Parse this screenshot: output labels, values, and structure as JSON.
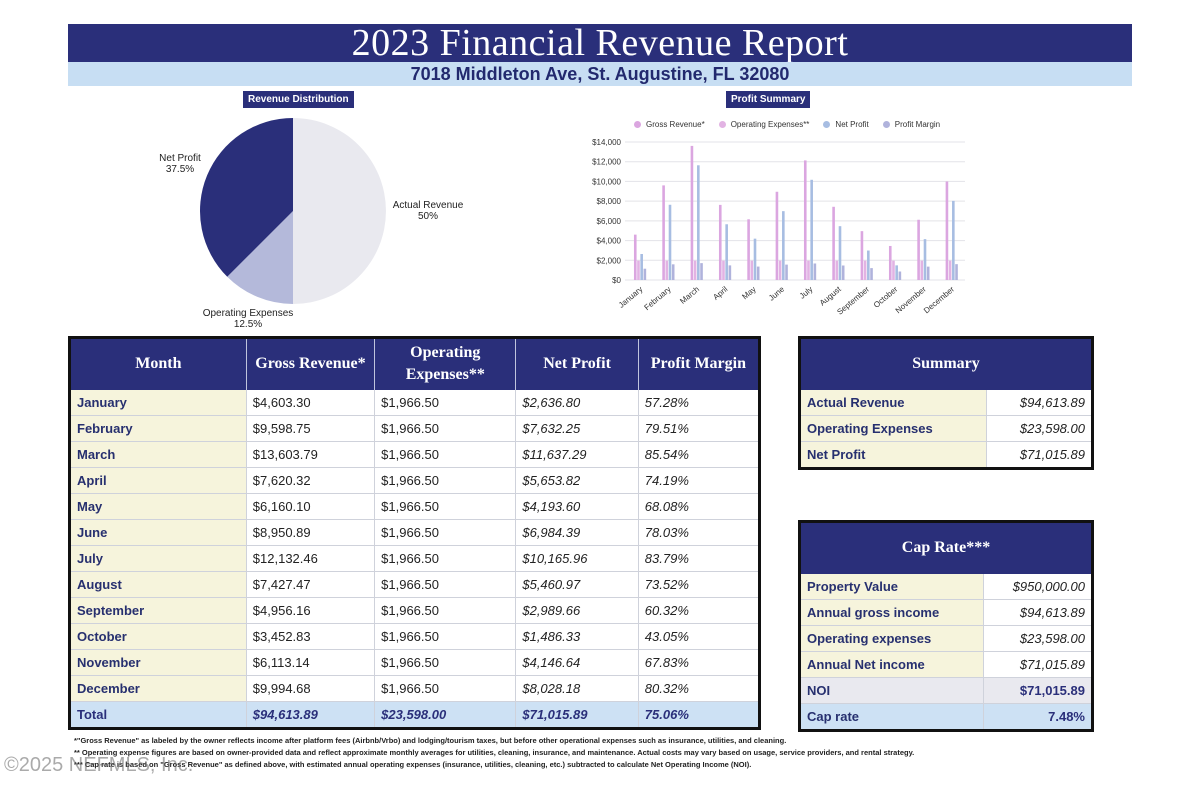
{
  "title": "2023 Financial Revenue Report",
  "address": "7018 Middleton Ave, St. Augustine, FL 32080",
  "pie": {
    "title": "Revenue Distribution",
    "slices": [
      {
        "label": "Actual Revenue",
        "pct": "50%",
        "value": 50,
        "color": "#e9e9ef"
      },
      {
        "label": "Operating Expenses",
        "pct": "12.5%",
        "value": 12.5,
        "color": "#b4b9da"
      },
      {
        "label": "Net Profit",
        "pct": "37.5%",
        "value": 37.5,
        "color": "#2a2f7a"
      }
    ]
  },
  "chart_data": {
    "type": "bar",
    "title": "Profit Summary",
    "categories": [
      "January",
      "February",
      "March",
      "April",
      "May",
      "June",
      "July",
      "August",
      "September",
      "October",
      "November",
      "December"
    ],
    "series": [
      {
        "name": "Gross Revenue*",
        "color": "#dba6e0",
        "values": [
          4603.3,
          9598.75,
          13603.79,
          7620.32,
          6160.1,
          8950.89,
          12132.46,
          7427.47,
          4956.16,
          3452.83,
          6113.14,
          9994.68
        ]
      },
      {
        "name": "Operating Expenses**",
        "color": "#e2b3e3",
        "values": [
          1966.5,
          1966.5,
          1966.5,
          1966.5,
          1966.5,
          1966.5,
          1966.5,
          1966.5,
          1966.5,
          1966.5,
          1966.5,
          1966.5
        ]
      },
      {
        "name": "Net Profit",
        "color": "#a7bde2",
        "values": [
          2636.8,
          7632.25,
          11637.29,
          5653.82,
          4193.6,
          6984.39,
          10165.96,
          5460.97,
          2989.66,
          1486.33,
          4146.64,
          8028.18
        ]
      },
      {
        "name": "Profit Margin",
        "color": "#b0b3dc",
        "values": [
          0.5728,
          0.7951,
          0.8554,
          0.7419,
          0.6808,
          0.7803,
          0.8379,
          0.7352,
          0.6032,
          0.4305,
          0.6783,
          0.8032
        ]
      }
    ],
    "ylim": [
      0,
      14000
    ],
    "yticks": [
      "$0",
      "$2,000",
      "$4,000",
      "$6,000",
      "$8,000",
      "$10,000",
      "$12,000",
      "$14,000"
    ],
    "grid": true,
    "legend_position": "top"
  },
  "monthly_table": {
    "headers": [
      "Month",
      "Gross Revenue*",
      "Operating Expenses**",
      "Net Profit",
      "Profit Margin"
    ],
    "rows": [
      [
        "January",
        "$4,603.30",
        "$1,966.50",
        "$2,636.80",
        "57.28%"
      ],
      [
        "February",
        "$9,598.75",
        "$1,966.50",
        "$7,632.25",
        "79.51%"
      ],
      [
        "March",
        "$13,603.79",
        "$1,966.50",
        "$11,637.29",
        "85.54%"
      ],
      [
        "April",
        "$7,620.32",
        "$1,966.50",
        "$5,653.82",
        "74.19%"
      ],
      [
        "May",
        "$6,160.10",
        "$1,966.50",
        "$4,193.60",
        "68.08%"
      ],
      [
        "June",
        "$8,950.89",
        "$1,966.50",
        "$6,984.39",
        "78.03%"
      ],
      [
        "July",
        "$12,132.46",
        "$1,966.50",
        "$10,165.96",
        "83.79%"
      ],
      [
        "August",
        "$7,427.47",
        "$1,966.50",
        "$5,460.97",
        "73.52%"
      ],
      [
        "September",
        "$4,956.16",
        "$1,966.50",
        "$2,989.66",
        "60.32%"
      ],
      [
        "October",
        "$3,452.83",
        "$1,966.50",
        "$1,486.33",
        "43.05%"
      ],
      [
        "November",
        "$6,113.14",
        "$1,966.50",
        "$4,146.64",
        "67.83%"
      ],
      [
        "December",
        "$9,994.68",
        "$1,966.50",
        "$8,028.18",
        "80.32%"
      ]
    ],
    "total": [
      "Total",
      "$94,613.89",
      "$23,598.00",
      "$71,015.89",
      "75.06%"
    ]
  },
  "summary": {
    "title": "Summary",
    "rows": [
      [
        "Actual Revenue",
        "$94,613.89"
      ],
      [
        "Operating Expenses",
        "$23,598.00"
      ],
      [
        "Net Profit",
        "$71,015.89"
      ]
    ]
  },
  "cap_rate": {
    "title": "Cap Rate***",
    "rows": [
      [
        "Property Value",
        "$950,000.00"
      ],
      [
        "Annual gross income",
        "$94,613.89"
      ],
      [
        "Operating expenses",
        "$23,598.00"
      ],
      [
        "Annual Net income",
        "$71,015.89"
      ],
      [
        "NOI",
        "$71,015.89"
      ],
      [
        "Cap rate",
        "7.48%"
      ]
    ]
  },
  "notes": [
    "*\"Gross Revenue\" as labeled by the owner reflects income after platform fees (Airbnb/Vrbo) and lodging/tourism taxes, but before other operational expenses such as insurance, utilities, and cleaning.",
    "** Operating expense figures are based on owner-provided data and reflect approximate monthly averages for utilities, cleaning, insurance, and maintenance. Actual costs may vary based on usage, service providers, and rental strategy.",
    "*** Cap rate is based on \"Gross Revenue\" as defined above, with estimated annual operating expenses (insurance, utilities, cleaning, etc.) subtracted to calculate Net Operating Income (NOI)."
  ],
  "watermark": "©2025 NEFMLS, Inc."
}
